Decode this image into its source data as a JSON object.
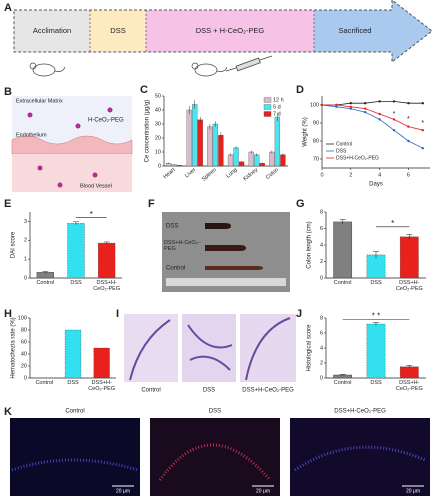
{
  "panel_labels": [
    "A",
    "B",
    "C",
    "D",
    "E",
    "F",
    "G",
    "H",
    "I",
    "J",
    "K"
  ],
  "timeline": {
    "stages": [
      "Acclimation",
      "DSS",
      "DSS + H-CeO₂-PEG",
      "Sacrificed"
    ]
  },
  "schematic": {
    "labels": [
      "Extracellular Matrix",
      "H-CeO₂-PEG",
      "Endothelium",
      "Blood Vessel"
    ]
  },
  "photo": {
    "labels": [
      "DSS",
      "DSS+H-CeO₂-PEG",
      "Control"
    ]
  },
  "histology": {
    "labels": [
      "Control",
      "DSS",
      "DSS+H-CeO₂-PEG"
    ]
  },
  "fluorescence": {
    "labels": [
      "Control",
      "DSS",
      "DSS+H-CeO₂-PEG"
    ],
    "scale_bars": [
      "20 μm",
      "20 μm",
      "20 μm"
    ]
  },
  "chart_data": [
    {
      "type": "bar",
      "ylabel": "Ce concentration (μg/g)",
      "categories": [
        "Heart",
        "Liver",
        "Spleen",
        "Lung",
        "Kidney",
        "Colon"
      ],
      "series": [
        {
          "name": "12 h",
          "color": "#d8bccb",
          "values": [
            2,
            40,
            28,
            8,
            10,
            10
          ],
          "errors": [
            0.5,
            3,
            2,
            1,
            1,
            1
          ]
        },
        {
          "name": "5 d",
          "color": "#4de3ef",
          "values": [
            1,
            44,
            30,
            13,
            8,
            35
          ],
          "errors": [
            0.3,
            3,
            2,
            1,
            1,
            3
          ]
        },
        {
          "name": "7 d",
          "color": "#e8211d",
          "values": [
            0.5,
            33,
            22,
            3,
            2,
            8
          ],
          "errors": [
            0.2,
            2,
            2,
            0.5,
            0.5,
            1
          ]
        }
      ],
      "ylim": [
        0,
        50
      ],
      "yticks": [
        0,
        10,
        20,
        30,
        40,
        50
      ],
      "legend": "upper right"
    },
    {
      "type": "line",
      "xlabel": "Days",
      "ylabel": "Weight (%)",
      "x": [
        0,
        1,
        2,
        3,
        4,
        5,
        6,
        7
      ],
      "series": [
        {
          "name": "Control",
          "color": "#222222",
          "values": [
            100,
            100,
            101,
            101,
            102,
            102,
            101,
            101
          ]
        },
        {
          "name": "DSS",
          "color": "#2f5fd0",
          "values": [
            100,
            99,
            98,
            96,
            92,
            86,
            80,
            76
          ]
        },
        {
          "name": "DSS+H-CeO₂-PEG",
          "color": "#e8211d",
          "values": [
            100,
            100,
            99,
            98,
            95,
            92,
            88,
            86
          ]
        }
      ],
      "xlim": [
        0,
        7.5
      ],
      "xticks": [
        0,
        2,
        4,
        6
      ],
      "ylim": [
        65,
        105
      ],
      "yticks": [
        70,
        80,
        90,
        100
      ],
      "legend": "lower left",
      "annotations": [
        {
          "text": "*",
          "x": 5,
          "y": 95
        },
        {
          "text": "*",
          "x": 6,
          "y": 92
        },
        {
          "text": "*",
          "x": 7,
          "y": 90
        }
      ]
    },
    {
      "type": "bar",
      "ylabel": "DAI score",
      "categories": [
        "Control",
        "DSS",
        "DSS+H-CeO₂-PEG"
      ],
      "values": [
        0.3,
        2.9,
        1.85
      ],
      "errors": [
        0.05,
        0.08,
        0.06
      ],
      "colors": [
        "#808080",
        "#33e0f0",
        "#e8211d"
      ],
      "ylim": [
        0,
        3.5
      ],
      "yticks": [
        0,
        1,
        2,
        3
      ],
      "significance": [
        {
          "text": "*",
          "y": 3.2
        }
      ]
    },
    {
      "type": "bar",
      "ylabel": "Colon length (cm)",
      "categories": [
        "Control",
        "DSS",
        "DSS+H-CeO₂-PEG"
      ],
      "values": [
        6.8,
        2.8,
        5.0
      ],
      "errors": [
        0.3,
        0.4,
        0.3
      ],
      "colors": [
        "#808080",
        "#33e0f0",
        "#e8211d"
      ],
      "ylim": [
        0,
        8
      ],
      "yticks": [
        0,
        2,
        4,
        6,
        8
      ],
      "significance": [
        {
          "text": "*",
          "y": 6.2
        }
      ]
    },
    {
      "type": "bar",
      "ylabel": "Hematochezia rate (%)",
      "categories": [
        "Control",
        "DSS",
        "DSS+H-CeO₂-PEG"
      ],
      "values": [
        0,
        80,
        50
      ],
      "colors": [
        "#808080",
        "#33e0f0",
        "#e8211d"
      ],
      "ylim": [
        0,
        100
      ],
      "yticks": [
        0,
        20,
        40,
        60,
        80,
        100
      ]
    },
    {
      "type": "bar",
      "ylabel": "Histological score",
      "categories": [
        "Control",
        "DSS",
        "DSS+H-CeO₂-PEG"
      ],
      "values": [
        0.4,
        7.2,
        1.5
      ],
      "errors": [
        0.1,
        0.2,
        0.2
      ],
      "colors": [
        "#808080",
        "#33e0f0",
        "#e8211d"
      ],
      "ylim": [
        0,
        8
      ],
      "yticks": [
        0,
        2,
        4,
        6,
        8
      ],
      "significance": [
        {
          "text": "* *",
          "y": 7.8
        }
      ]
    }
  ]
}
